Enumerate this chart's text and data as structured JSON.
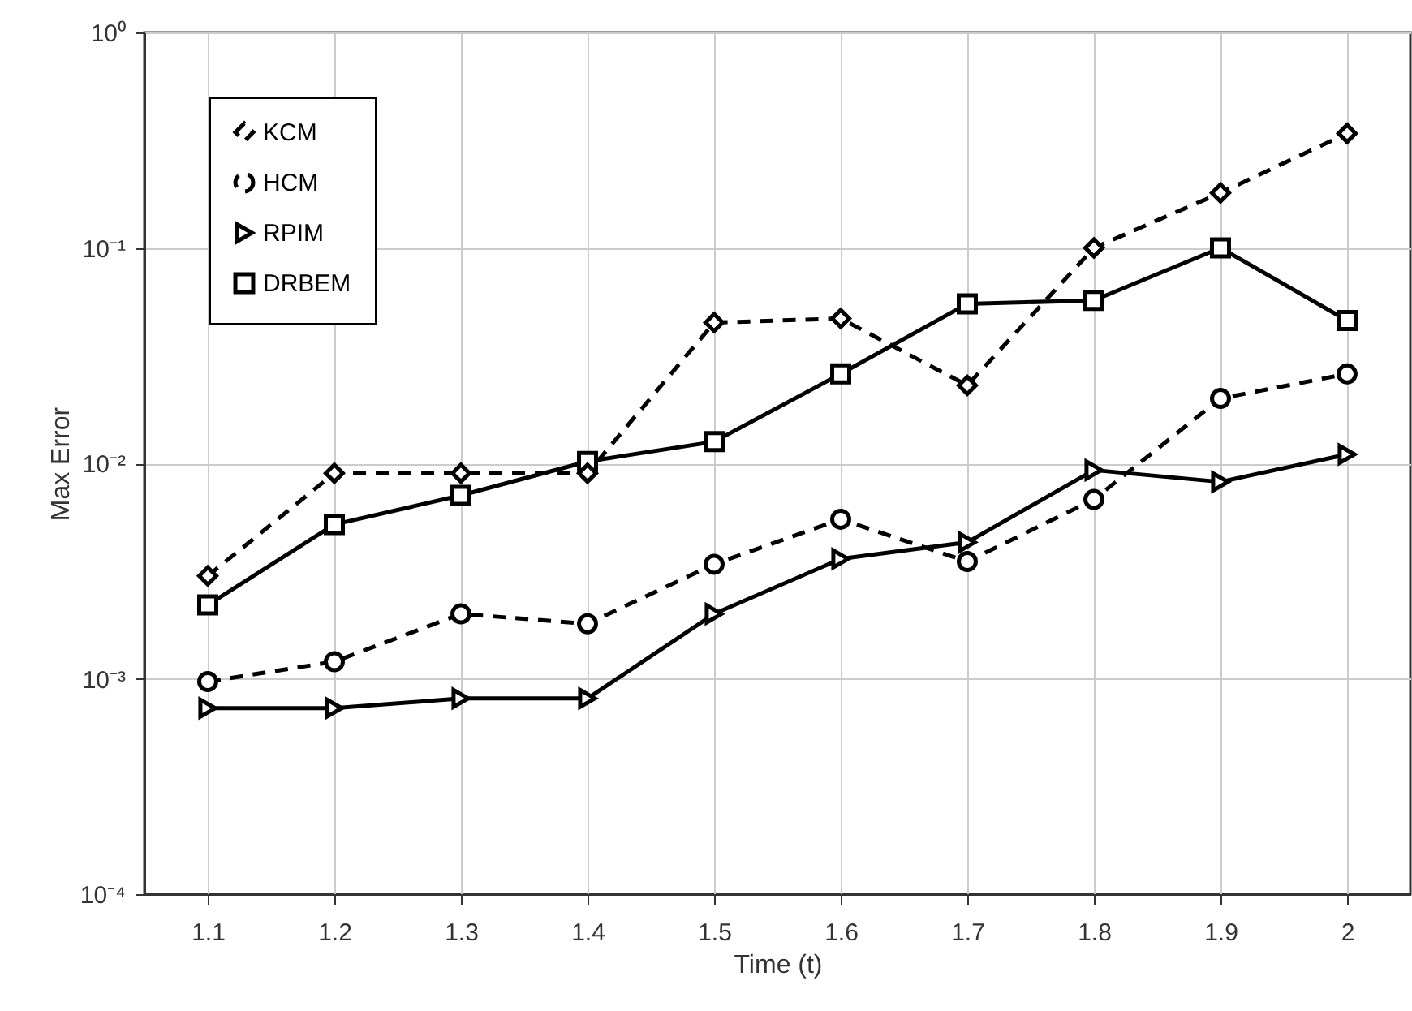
{
  "chart_data": {
    "type": "line",
    "xlabel": "Time (t)",
    "ylabel": "Max Error",
    "x": [
      1.1,
      1.2,
      1.3,
      1.4,
      1.5,
      1.6,
      1.7,
      1.8,
      1.9,
      2
    ],
    "xlim": [
      1.05,
      2.05
    ],
    "xticks": [
      1.1,
      1.2,
      1.3,
      1.4,
      1.5,
      1.6,
      1.7,
      1.8,
      1.9,
      2
    ],
    "log": "y",
    "ylim": [
      0.0001,
      1
    ],
    "yticks": [
      {
        "value": 0.0001,
        "label": "10⁻⁴"
      },
      {
        "value": 0.001,
        "label": "10⁻³"
      },
      {
        "value": 0.01,
        "label": "10⁻²"
      },
      {
        "value": 0.1,
        "label": "10⁻¹"
      },
      {
        "value": 1,
        "label": "10⁰"
      }
    ],
    "grid": true,
    "legend": "top left",
    "series": [
      {
        "name": "KCM",
        "color": "#000000",
        "marker": "diamond",
        "line_style": "dashed",
        "values": [
          0.003,
          0.009,
          0.009,
          0.009,
          0.045,
          0.047,
          0.023,
          0.1,
          0.18,
          0.34
        ]
      },
      {
        "name": "HCM",
        "color": "#000000",
        "marker": "circle",
        "line_style": "dashed",
        "values": [
          0.00097,
          0.0012,
          0.002,
          0.0018,
          0.0034,
          0.0055,
          0.0035,
          0.0068,
          0.02,
          0.026
        ]
      },
      {
        "name": "RPIM",
        "color": "#000000",
        "marker": "triangle",
        "line_style": "solid",
        "values": [
          0.00073,
          0.00073,
          0.00081,
          0.00081,
          0.002,
          0.0036,
          0.0043,
          0.0093,
          0.0082,
          0.011
        ]
      },
      {
        "name": "DRBEM",
        "color": "#000000",
        "marker": "square",
        "line_style": "solid",
        "values": [
          0.0022,
          0.0052,
          0.0071,
          0.0102,
          0.0126,
          0.026,
          0.055,
          0.057,
          0.1,
          0.046
        ]
      }
    ]
  }
}
